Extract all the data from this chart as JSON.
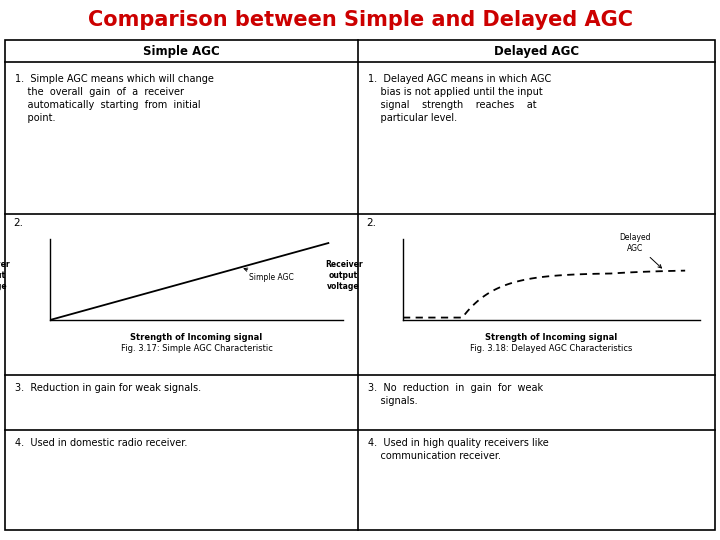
{
  "title": "Comparison between Simple and Delayed AGC",
  "title_color": "#cc0000",
  "title_fontsize": 15,
  "bg_color": "#ffffff",
  "col1_header": "Simple AGC",
  "col2_header": "Delayed AGC",
  "row1_col1_lines": [
    "1.  Simple AGC means which will change",
    "    the  overall  gain  of  a  receiver",
    "    automatically  starting  from  initial",
    "    point."
  ],
  "row1_col2_lines": [
    "1.  Delayed AGC means in which AGC",
    "    bias is not applied until the input",
    "    signal    strength    reaches    at",
    "    particular level."
  ],
  "fig1_caption": "Fig. 3.17: Simple AGC Characteristic",
  "fig2_caption": "Fig. 3.18: Delayed AGC Characteristics",
  "row3_col1": "3.  Reduction in gain for weak signals.",
  "row3_col2_lines": [
    "3.  No  reduction  in  gain  for  weak",
    "    signals."
  ],
  "row4_col1": "4.  Used in domestic radio receiver.",
  "row4_col2_lines": [
    "4.  Used in high quality receivers like",
    "    communication receiver."
  ],
  "label_2_left": "2.",
  "label_2_right": "2.",
  "ylabel_left": "Receiver\noutput\nvoltage",
  "ylabel_right": "Receiver\noutput\nvoltage",
  "xlabel_left": "Strength of Incoming signal",
  "xlabel_right": "Strength of Incoming signal",
  "curve1_label": "Simple AGC",
  "curve2_label": "Delayed\nAGC",
  "line_color": "#000000",
  "border_color": "#000000",
  "text_color": "#000000",
  "font_family": "DejaVu Sans"
}
